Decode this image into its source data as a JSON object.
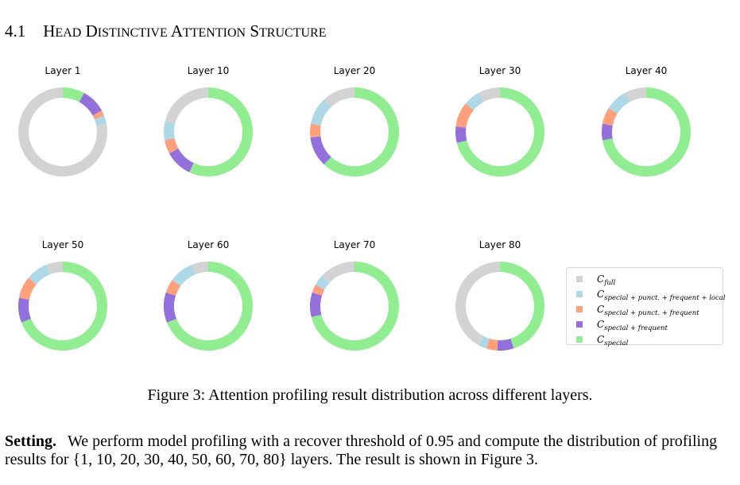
{
  "section": {
    "number": "4.1",
    "title": "Head Distinctive Attention Structure"
  },
  "chart_data": {
    "type": "pie",
    "variant": "donut",
    "categories": [
      "C_full",
      "C_special+punct.+frequent+local",
      "C_special+punct.+frequent",
      "C_special+frequent",
      "C_special"
    ],
    "legend_entries": [
      {
        "base": "C",
        "sub": "full"
      },
      {
        "base": "C",
        "sub": "special + punct. + frequent + local"
      },
      {
        "base": "C",
        "sub": "special + punct. + frequent"
      },
      {
        "base": "C",
        "sub": "special + frequent"
      },
      {
        "base": "C",
        "sub": "special"
      }
    ],
    "colors": {
      "C_full": "#d3d3d3",
      "C_special+punct.+frequent+local": "#add8e6",
      "C_special+punct.+frequent": "#ffa07a",
      "C_special+frequent": "#9370db",
      "C_special": "#90ee90"
    },
    "slice_order": [
      "C_special",
      "C_special+frequent",
      "C_special+punct.+frequent",
      "C_special+punct.+frequent+local",
      "C_full"
    ],
    "legend_placement": "lower-right",
    "series": [
      {
        "name": "Layer 1",
        "values": {
          "C_special": 8,
          "C_special+frequent": 9,
          "C_special+punct.+frequent": 2,
          "C_special+punct.+frequent+local": 3,
          "C_full": 78
        }
      },
      {
        "name": "Layer 10",
        "values": {
          "C_special": 57,
          "C_special+frequent": 10,
          "C_special+punct.+frequent": 5,
          "C_special+punct.+frequent+local": 7,
          "C_full": 21
        }
      },
      {
        "name": "Layer 20",
        "values": {
          "C_special": 62,
          "C_special+frequent": 11,
          "C_special+punct.+frequent": 5,
          "C_special+punct.+frequent+local": 10,
          "C_full": 12
        }
      },
      {
        "name": "Layer 30",
        "values": {
          "C_special": 71,
          "C_special+frequent": 6,
          "C_special+punct.+frequent": 9,
          "C_special+punct.+frequent+local": 6,
          "C_full": 8
        }
      },
      {
        "name": "Layer 40",
        "values": {
          "C_special": 72,
          "C_special+frequent": 6,
          "C_special+punct.+frequent": 6,
          "C_special+punct.+frequent+local": 8,
          "C_full": 8
        }
      },
      {
        "name": "Layer 50",
        "values": {
          "C_special": 69,
          "C_special+frequent": 9,
          "C_special+punct.+frequent": 8,
          "C_special+punct.+frequent+local": 8,
          "C_full": 6
        }
      },
      {
        "name": "Layer 60",
        "values": {
          "C_special": 69,
          "C_special+frequent": 11,
          "C_special+punct.+frequent": 5,
          "C_special+punct.+frequent+local": 9,
          "C_full": 6
        }
      },
      {
        "name": "Layer 70",
        "values": {
          "C_special": 71,
          "C_special+frequent": 9,
          "C_special+punct.+frequent": 3,
          "C_special+punct.+frequent+local": 4,
          "C_full": 13
        }
      },
      {
        "name": "Layer 80",
        "values": {
          "C_special": 45,
          "C_special+frequent": 6,
          "C_special+punct.+frequent": 4,
          "C_special+punct.+frequent+local": 3,
          "C_full": 42
        }
      }
    ]
  },
  "caption": "Figure 3: Attention profiling result distribution across different layers.",
  "paragraph": {
    "lead": "Setting.",
    "text": "We perform model profiling with a recover threshold of 0.95 and compute the distribution of profiling results for {1, 10, 20, 30, 40, 50, 60, 70, 80} layers. The result is shown in Figure 3."
  }
}
